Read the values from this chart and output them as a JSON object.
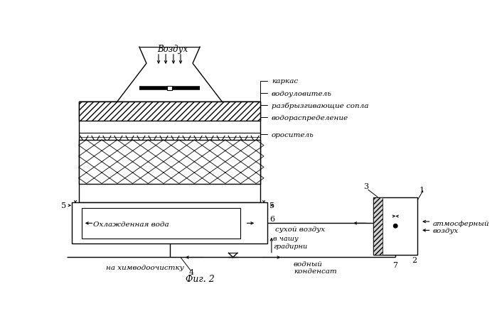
{
  "bg_color": "#ffffff",
  "line_color": "#000000",
  "title": "Фиг. 2",
  "labels": {
    "vozdukh": "Воздух",
    "karkas": "каркас",
    "vodoulovitel": "водоуловитель",
    "raspyla": "разбрызгивающие сопла",
    "vodorasp": "водораспределение",
    "orositel": "ороситель",
    "ohlazhd": "Охлажденная вода",
    "sukhoy": "сухой воздух",
    "v_chashu": "в чашу\nградирни",
    "na_khim": "на химводоочистку",
    "vodny": "водный\nконденсат",
    "atm": "атмосферный\nвоздух"
  }
}
